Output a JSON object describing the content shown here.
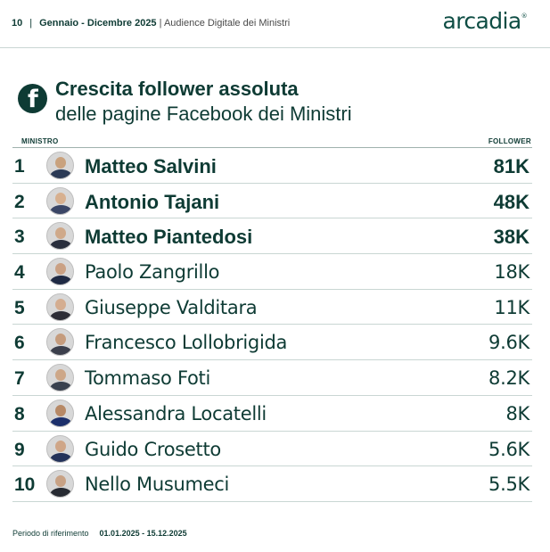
{
  "header": {
    "page_number": "10",
    "separator": "|",
    "period": "Gennaio - Dicembre 2025",
    "subtitle": "Audience Digitale dei Ministri",
    "logo_text": "arcadia",
    "logo_mark": "®"
  },
  "section": {
    "icon": "facebook-icon",
    "icon_glyph": "f",
    "title": "Crescita follower assoluta",
    "subtitle": "delle pagine Facebook dei Ministri"
  },
  "table": {
    "col_left": "MINISTRO",
    "col_right": "FOLLOWER",
    "rows": [
      {
        "rank": "1",
        "name": "Matteo Salvini",
        "value": "81K",
        "highlight": true
      },
      {
        "rank": "2",
        "name": "Antonio Tajani",
        "value": "48K",
        "highlight": true
      },
      {
        "rank": "3",
        "name": "Matteo Piantedosi",
        "value": "38K",
        "highlight": true
      },
      {
        "rank": "4",
        "name": "Paolo Zangrillo",
        "value": "18K",
        "highlight": false
      },
      {
        "rank": "5",
        "name": "Giuseppe Valditara",
        "value": "11K",
        "highlight": false
      },
      {
        "rank": "6",
        "name": "Francesco Lollobrigida",
        "value": "9.6K",
        "highlight": false
      },
      {
        "rank": "7",
        "name": "Tommaso Foti",
        "value": "8.2K",
        "highlight": false
      },
      {
        "rank": "8",
        "name": "Alessandra Locatelli",
        "value": "8K",
        "highlight": false
      },
      {
        "rank": "9",
        "name": "Guido Crosetto",
        "value": "5.6K",
        "highlight": false
      },
      {
        "rank": "10",
        "name": "Nello Musumeci",
        "value": "5.5K",
        "highlight": false
      }
    ]
  },
  "footer": {
    "label": "Periodo di riferimento",
    "dates": "01.01.2025 - 15.12.2025"
  },
  "colors": {
    "primary": "#0e3b34",
    "divider": "#c9d6d3"
  }
}
